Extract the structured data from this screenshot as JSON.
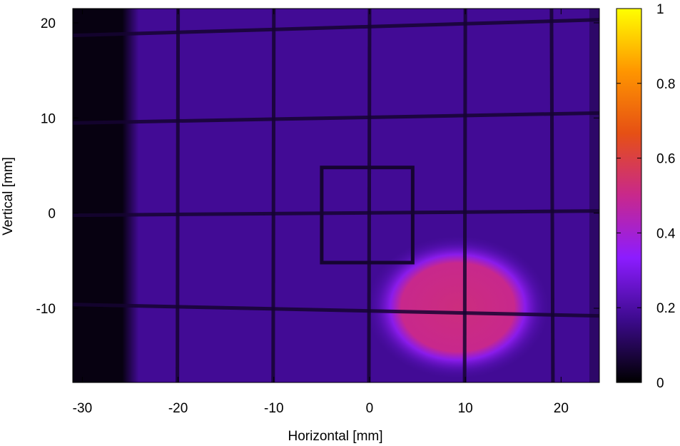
{
  "chart_data": {
    "type": "heatmap",
    "title": "",
    "xlabel": "Horizontal [mm]",
    "ylabel": "Vertical [mm]",
    "xlim": [
      -31,
      24
    ],
    "ylim": [
      -17.8,
      21.5
    ],
    "x_ticks": [
      -30,
      -20,
      -10,
      0,
      10,
      20
    ],
    "y_ticks": [
      -10,
      0,
      10,
      20
    ],
    "colorbar": {
      "range": [
        0,
        1
      ],
      "ticks": [
        0,
        0.2,
        0.4,
        0.6,
        0.8,
        1
      ],
      "colors": [
        "#000000",
        "#3c0a8c",
        "#8c1cff",
        "#c8288c",
        "#e65014",
        "#ff9600",
        "#ffff00"
      ]
    },
    "background_level": 0.18,
    "dark_edge": {
      "x_from": -31,
      "x_to": -25,
      "level": 0.02
    },
    "grid_wires": {
      "vertical_x": [
        -20,
        -10,
        0,
        10,
        19
      ],
      "horizontal_y": [
        19.5,
        10,
        0,
        -10.2
      ],
      "level": 0.06
    },
    "marker_square": {
      "x": [
        -5,
        4.5
      ],
      "y": [
        -5.2,
        4.8
      ]
    },
    "hot_spot": {
      "center_x": 9.5,
      "center_y": -10.5,
      "level": 0.52
    }
  }
}
